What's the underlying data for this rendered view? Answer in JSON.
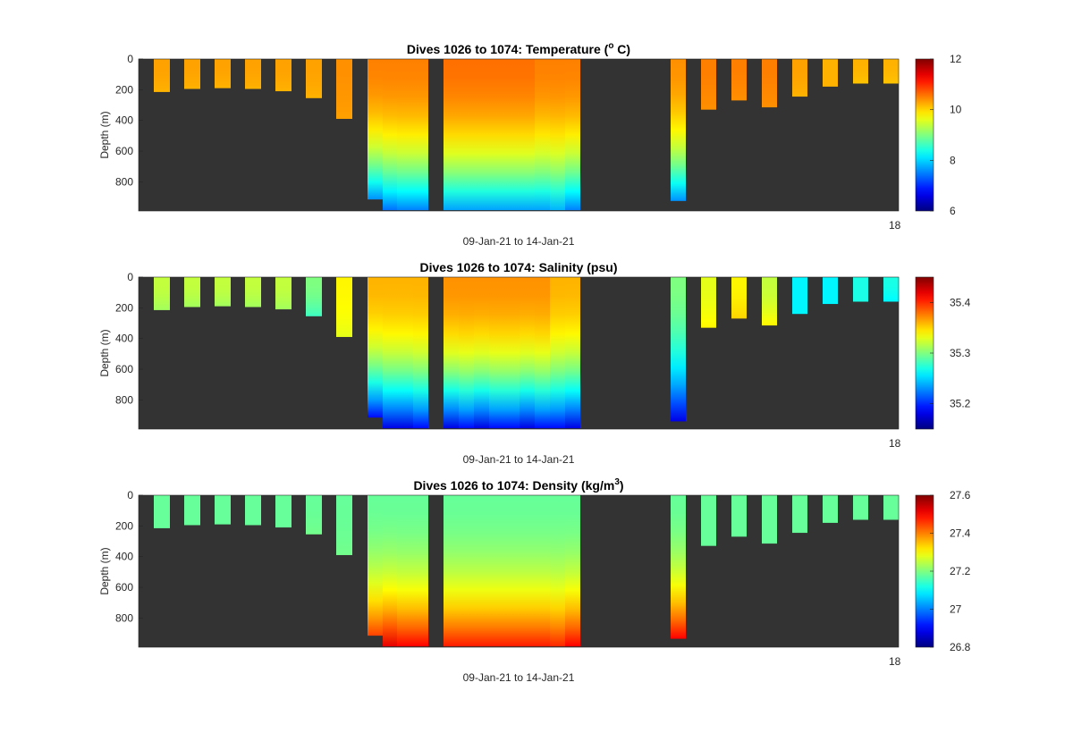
{
  "chart_data": [
    {
      "type": "heatmap",
      "title_prefix": "Dives 1026 to 1074: Temperature (",
      "title_super": "o",
      "title_suffix": " C)",
      "xlabel": "09-Jan-21 to 14-Jan-21",
      "ylabel": "Depth (m)",
      "ylim": [
        0,
        990
      ],
      "yticks": [
        "0",
        "200",
        "400",
        "600",
        "800"
      ],
      "x_end_label": "18",
      "colorbar": {
        "range": [
          6,
          12
        ],
        "ticks": [
          "6",
          "8",
          "10",
          "12"
        ],
        "colormap": "jet"
      },
      "background_color": "#333333",
      "profiles": [
        {
          "dive_group": 1,
          "max_depth": 215,
          "value_top": 10.3,
          "value_bottom": 10.2
        },
        {
          "dive_group": 2,
          "max_depth": 195,
          "value_top": 10.3,
          "value_bottom": 10.2
        },
        {
          "dive_group": 3,
          "max_depth": 190,
          "value_top": 10.3,
          "value_bottom": 10.2
        },
        {
          "dive_group": 4,
          "max_depth": 195,
          "value_top": 10.3,
          "value_bottom": 10.2
        },
        {
          "dive_group": 5,
          "max_depth": 210,
          "value_top": 10.3,
          "value_bottom": 10.2
        },
        {
          "dive_group": 6,
          "max_depth": 255,
          "value_top": 10.3,
          "value_bottom": 10.2
        },
        {
          "dive_group": 7,
          "max_depth": 390,
          "value_top": 10.4,
          "value_bottom": 10.3
        },
        {
          "dive_group": 8,
          "max_depth": 915,
          "value_top": 10.5,
          "value_bottom": 7.6
        },
        {
          "dive_group": 9,
          "max_depth": 985,
          "value_top": 10.5,
          "value_bottom": 7.4
        },
        {
          "dive_group": 10,
          "max_depth": 985,
          "value_top": 10.5,
          "value_bottom": 7.5
        },
        {
          "dive_group": 11,
          "max_depth": 985,
          "value_top": 10.5,
          "value_bottom": 7.5
        },
        {
          "dive_group": 12,
          "max_depth": 985,
          "value_top": 10.6,
          "value_bottom": 7.7
        },
        {
          "dive_group": 13,
          "max_depth": 985,
          "value_top": 10.6,
          "value_bottom": 7.7
        },
        {
          "dive_group": 14,
          "max_depth": 985,
          "value_top": 10.6,
          "value_bottom": 7.7
        },
        {
          "dive_group": 15,
          "max_depth": 985,
          "value_top": 10.6,
          "value_bottom": 7.7
        },
        {
          "dive_group": 16,
          "max_depth": 985,
          "value_top": 10.6,
          "value_bottom": 7.7
        },
        {
          "dive_group": 17,
          "max_depth": 985,
          "value_top": 10.6,
          "value_bottom": 7.7
        },
        {
          "dive_group": 18,
          "max_depth": 985,
          "value_top": 10.5,
          "value_bottom": 7.7
        },
        {
          "dive_group": 19,
          "max_depth": 985,
          "value_top": 10.5,
          "value_bottom": 7.8
        },
        {
          "dive_group": 20,
          "max_depth": 985,
          "value_top": 10.5,
          "value_bottom": 7.5
        },
        {
          "dive_group": 21,
          "max_depth": 925,
          "value_top": 10.4,
          "value_bottom": 7.6
        },
        {
          "dive_group": 22,
          "max_depth": 330,
          "value_top": 10.5,
          "value_bottom": 10.4
        },
        {
          "dive_group": 23,
          "max_depth": 270,
          "value_top": 10.5,
          "value_bottom": 10.4
        },
        {
          "dive_group": 24,
          "max_depth": 315,
          "value_top": 10.5,
          "value_bottom": 10.4
        },
        {
          "dive_group": 25,
          "max_depth": 245,
          "value_top": 10.3,
          "value_bottom": 10.2
        },
        {
          "dive_group": 26,
          "max_depth": 180,
          "value_top": 10.2,
          "value_bottom": 10.2
        },
        {
          "dive_group": 27,
          "max_depth": 160,
          "value_top": 10.2,
          "value_bottom": 10.1
        },
        {
          "dive_group": 28,
          "max_depth": 160,
          "value_top": 10.2,
          "value_bottom": 10.1
        }
      ]
    },
    {
      "type": "heatmap",
      "title_prefix": "Dives 1026 to 1074: Salinity (psu)",
      "title_super": "",
      "title_suffix": "",
      "xlabel": "09-Jan-21 to 14-Jan-21",
      "ylabel": "Depth (m)",
      "ylim": [
        0,
        990
      ],
      "yticks": [
        "0",
        "200",
        "400",
        "600",
        "800"
      ],
      "x_end_label": "18",
      "colorbar": {
        "range": [
          35.15,
          35.45
        ],
        "ticks": [
          "35.2",
          "35.3",
          "35.4"
        ],
        "colormap": "jet"
      },
      "background_color": "#333333",
      "profiles": [
        {
          "dive_group": 1,
          "max_depth": 215,
          "value_top": 35.32,
          "value_bottom": 35.31
        },
        {
          "dive_group": 2,
          "max_depth": 195,
          "value_top": 35.32,
          "value_bottom": 35.31
        },
        {
          "dive_group": 3,
          "max_depth": 190,
          "value_top": 35.32,
          "value_bottom": 35.31
        },
        {
          "dive_group": 4,
          "max_depth": 195,
          "value_top": 35.32,
          "value_bottom": 35.31
        },
        {
          "dive_group": 5,
          "max_depth": 210,
          "value_top": 35.32,
          "value_bottom": 35.31
        },
        {
          "dive_group": 6,
          "max_depth": 255,
          "value_top": 35.3,
          "value_bottom": 35.28
        },
        {
          "dive_group": 7,
          "max_depth": 390,
          "value_top": 35.34,
          "value_bottom": 35.33
        },
        {
          "dive_group": 8,
          "max_depth": 915,
          "value_top": 35.36,
          "value_bottom": 35.19
        },
        {
          "dive_group": 9,
          "max_depth": 985,
          "value_top": 35.36,
          "value_bottom": 35.18
        },
        {
          "dive_group": 10,
          "max_depth": 985,
          "value_top": 35.36,
          "value_bottom": 35.18
        },
        {
          "dive_group": 11,
          "max_depth": 985,
          "value_top": 35.36,
          "value_bottom": 35.19
        },
        {
          "dive_group": 12,
          "max_depth": 985,
          "value_top": 35.37,
          "value_bottom": 35.18
        },
        {
          "dive_group": 13,
          "max_depth": 985,
          "value_top": 35.37,
          "value_bottom": 35.19
        },
        {
          "dive_group": 14,
          "max_depth": 985,
          "value_top": 35.37,
          "value_bottom": 35.18
        },
        {
          "dive_group": 15,
          "max_depth": 985,
          "value_top": 35.37,
          "value_bottom": 35.19
        },
        {
          "dive_group": 16,
          "max_depth": 985,
          "value_top": 35.37,
          "value_bottom": 35.19
        },
        {
          "dive_group": 17,
          "max_depth": 985,
          "value_top": 35.37,
          "value_bottom": 35.18
        },
        {
          "dive_group": 18,
          "max_depth": 985,
          "value_top": 35.37,
          "value_bottom": 35.19
        },
        {
          "dive_group": 19,
          "max_depth": 985,
          "value_top": 35.36,
          "value_bottom": 35.19
        },
        {
          "dive_group": 20,
          "max_depth": 985,
          "value_top": 35.36,
          "value_bottom": 35.18
        },
        {
          "dive_group": 21,
          "max_depth": 940,
          "value_top": 35.3,
          "value_bottom": 35.18
        },
        {
          "dive_group": 22,
          "max_depth": 330,
          "value_top": 35.33,
          "value_bottom": 35.34
        },
        {
          "dive_group": 23,
          "max_depth": 270,
          "value_top": 35.34,
          "value_bottom": 35.35
        },
        {
          "dive_group": 24,
          "max_depth": 315,
          "value_top": 35.32,
          "value_bottom": 35.34
        },
        {
          "dive_group": 25,
          "max_depth": 240,
          "value_top": 35.26,
          "value_bottom": 35.26
        },
        {
          "dive_group": 26,
          "max_depth": 175,
          "value_top": 35.26,
          "value_bottom": 35.26
        },
        {
          "dive_group": 27,
          "max_depth": 160,
          "value_top": 35.27,
          "value_bottom": 35.27
        },
        {
          "dive_group": 28,
          "max_depth": 160,
          "value_top": 35.27,
          "value_bottom": 35.26
        }
      ]
    },
    {
      "type": "heatmap",
      "title_prefix": "Dives 1026 to 1074: Density (kg/m",
      "title_super": "3",
      "title_suffix": ")",
      "xlabel": "09-Jan-21 to 14-Jan-21",
      "ylabel": "Depth (m)",
      "ylim": [
        0,
        990
      ],
      "yticks": [
        "0",
        "200",
        "400",
        "600",
        "800"
      ],
      "x_end_label": "18",
      "colorbar": {
        "range": [
          26.8,
          27.6
        ],
        "ticks": [
          "26.8",
          "27",
          "27.2",
          "27.4",
          "27.6"
        ],
        "colormap": "jet"
      },
      "background_color": "#333333",
      "profiles": [
        {
          "dive_group": 1,
          "max_depth": 215,
          "value_top": 27.18,
          "value_bottom": 27.18
        },
        {
          "dive_group": 2,
          "max_depth": 195,
          "value_top": 27.18,
          "value_bottom": 27.18
        },
        {
          "dive_group": 3,
          "max_depth": 190,
          "value_top": 27.18,
          "value_bottom": 27.18
        },
        {
          "dive_group": 4,
          "max_depth": 195,
          "value_top": 27.18,
          "value_bottom": 27.18
        },
        {
          "dive_group": 5,
          "max_depth": 210,
          "value_top": 27.18,
          "value_bottom": 27.18
        },
        {
          "dive_group": 6,
          "max_depth": 255,
          "value_top": 27.18,
          "value_bottom": 27.19
        },
        {
          "dive_group": 7,
          "max_depth": 390,
          "value_top": 27.18,
          "value_bottom": 27.19
        },
        {
          "dive_group": 8,
          "max_depth": 915,
          "value_top": 27.18,
          "value_bottom": 27.45
        },
        {
          "dive_group": 9,
          "max_depth": 985,
          "value_top": 27.18,
          "value_bottom": 27.52
        },
        {
          "dive_group": 10,
          "max_depth": 985,
          "value_top": 27.18,
          "value_bottom": 27.5
        },
        {
          "dive_group": 11,
          "max_depth": 985,
          "value_top": 27.18,
          "value_bottom": 27.5
        },
        {
          "dive_group": 12,
          "max_depth": 985,
          "value_top": 27.18,
          "value_bottom": 27.48
        },
        {
          "dive_group": 13,
          "max_depth": 985,
          "value_top": 27.18,
          "value_bottom": 27.48
        },
        {
          "dive_group": 14,
          "max_depth": 985,
          "value_top": 27.18,
          "value_bottom": 27.48
        },
        {
          "dive_group": 15,
          "max_depth": 985,
          "value_top": 27.18,
          "value_bottom": 27.48
        },
        {
          "dive_group": 16,
          "max_depth": 985,
          "value_top": 27.18,
          "value_bottom": 27.48
        },
        {
          "dive_group": 17,
          "max_depth": 985,
          "value_top": 27.18,
          "value_bottom": 27.48
        },
        {
          "dive_group": 18,
          "max_depth": 985,
          "value_top": 27.18,
          "value_bottom": 27.48
        },
        {
          "dive_group": 19,
          "max_depth": 985,
          "value_top": 27.18,
          "value_bottom": 27.47
        },
        {
          "dive_group": 20,
          "max_depth": 985,
          "value_top": 27.18,
          "value_bottom": 27.5
        },
        {
          "dive_group": 21,
          "max_depth": 935,
          "value_top": 27.18,
          "value_bottom": 27.5
        },
        {
          "dive_group": 22,
          "max_depth": 330,
          "value_top": 27.18,
          "value_bottom": 27.18
        },
        {
          "dive_group": 23,
          "max_depth": 270,
          "value_top": 27.18,
          "value_bottom": 27.18
        },
        {
          "dive_group": 24,
          "max_depth": 315,
          "value_top": 27.18,
          "value_bottom": 27.18
        },
        {
          "dive_group": 25,
          "max_depth": 245,
          "value_top": 27.18,
          "value_bottom": 27.18
        },
        {
          "dive_group": 26,
          "max_depth": 180,
          "value_top": 27.18,
          "value_bottom": 27.18
        },
        {
          "dive_group": 27,
          "max_depth": 160,
          "value_top": 27.18,
          "value_bottom": 27.18
        },
        {
          "dive_group": 28,
          "max_depth": 160,
          "value_top": 27.18,
          "value_bottom": 27.18
        }
      ]
    }
  ]
}
